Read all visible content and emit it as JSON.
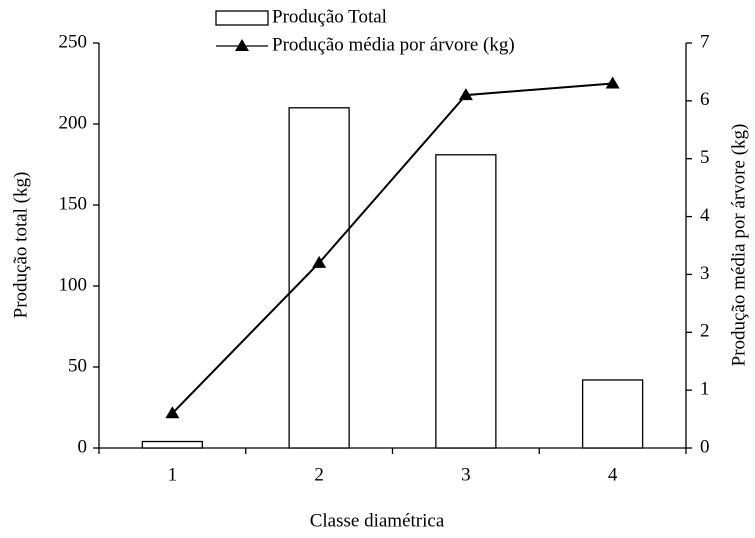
{
  "chart_data": {
    "type": "bar",
    "x_label": "Classe diamétrica",
    "y_label": "Produção total (kg)",
    "y2_label": "Produção média por árvore (kg)",
    "categories": [
      "1",
      "2",
      "3",
      "4"
    ],
    "series": [
      {
        "name": "Produção Total",
        "type": "bar",
        "color": "#ffffff",
        "values": [
          4,
          210,
          181,
          42
        ]
      },
      {
        "name": "Produção média por árvore (kg)",
        "type": "line",
        "axis": "y2",
        "color": "#000000",
        "values": [
          0.6,
          3.2,
          6.1,
          6.3
        ]
      }
    ],
    "ylim": [
      0,
      250
    ],
    "yticks": [
      0,
      50,
      100,
      150,
      200,
      250
    ],
    "y2lim": [
      0,
      7
    ],
    "y2ticks": [
      0,
      1,
      2,
      3,
      4,
      5,
      6,
      7
    ],
    "grid": false,
    "legend": "top"
  }
}
